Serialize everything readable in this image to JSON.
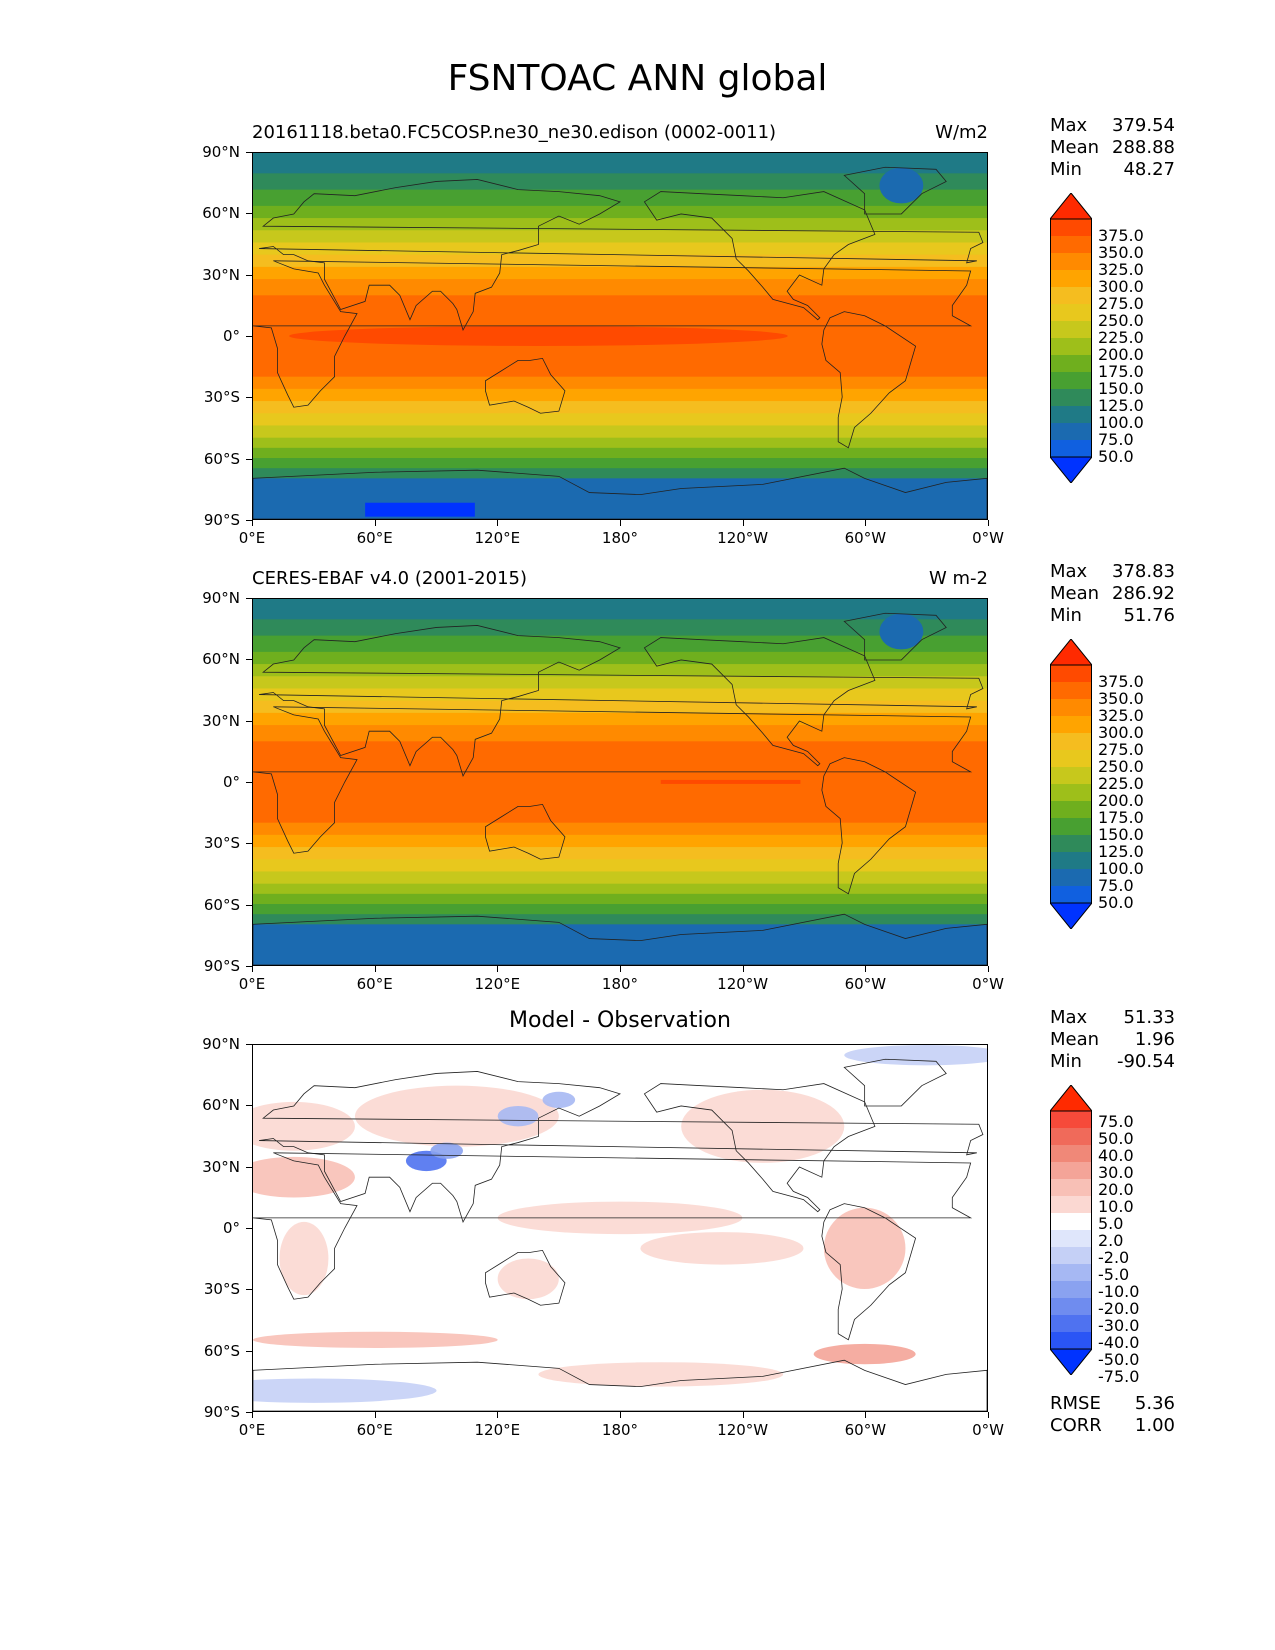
{
  "figure_title": "FSNTOAC ANN global",
  "lat_ticks": [
    "90°N",
    "60°N",
    "30°N",
    "0°",
    "30°S",
    "60°S",
    "90°S"
  ],
  "lon_ticks": [
    "0°E",
    "60°E",
    "120°E",
    "180°",
    "120°W",
    "60°W",
    "0°W"
  ],
  "panels": [
    {
      "id": "model",
      "left_title": "20161118.beta0.FC5COSP.ne30_ne30.edison (0002-0011)",
      "right_title": "W/m2",
      "stats": {
        "max_label": "Max",
        "max": "379.54",
        "mean_label": "Mean",
        "mean": "288.88",
        "min_label": "Min",
        "min": "48.27"
      },
      "colorbar_labels": [
        "375.0",
        "350.0",
        "325.0",
        "300.0",
        "275.0",
        "250.0",
        "225.0",
        "200.0",
        "175.0",
        "150.0",
        "125.0",
        "100.0",
        "75.0",
        "50.0"
      ]
    },
    {
      "id": "obs",
      "left_title": "CERES-EBAF v4.0 (2001-2015)",
      "right_title": "W m-2",
      "stats": {
        "max_label": "Max",
        "max": "378.83",
        "mean_label": "Mean",
        "mean": "286.92",
        "min_label": "Min",
        "min": "51.76"
      },
      "colorbar_labels": [
        "375.0",
        "350.0",
        "325.0",
        "300.0",
        "275.0",
        "250.0",
        "225.0",
        "200.0",
        "175.0",
        "150.0",
        "125.0",
        "100.0",
        "75.0",
        "50.0"
      ]
    },
    {
      "id": "diff",
      "center_title": "Model - Observation",
      "stats": {
        "max_label": "Max",
        "max": "51.33",
        "mean_label": "Mean",
        "mean": "1.96",
        "min_label": "Min",
        "min": "-90.54"
      },
      "colorbar_labels": [
        "75.0",
        "50.0",
        "40.0",
        "30.0",
        "20.0",
        "10.0",
        "5.0",
        "2.0",
        "-2.0",
        "-5.0",
        "-10.0",
        "-20.0",
        "-30.0",
        "-40.0",
        "-50.0",
        "-75.0"
      ],
      "metrics": {
        "rmse_label": "RMSE",
        "rmse": "5.36",
        "corr_label": "CORR",
        "corr": "1.00"
      }
    }
  ],
  "colors": {
    "abs_scale": [
      "#ff2a00",
      "#ff4a00",
      "#ff6a00",
      "#ff8a00",
      "#ffa400",
      "#f5bd1f",
      "#e8c81d",
      "#c7c81c",
      "#9ebf1a",
      "#6faf1e",
      "#48a031",
      "#2f8a5a",
      "#1f7a86",
      "#1b6ab0",
      "#1060e0",
      "#0033ff"
    ],
    "diff_scale": [
      "#ff2a00",
      "#f64a3a",
      "#f06a5a",
      "#f08878",
      "#f4a498",
      "#f8c0b6",
      "#fbd8d2",
      "#ffffff",
      "#dfe6fb",
      "#c5d0f6",
      "#a6b8f3",
      "#8aa2f0",
      "#6f8cef",
      "#4f72f0",
      "#2a55f5",
      "#0033ff"
    ]
  }
}
